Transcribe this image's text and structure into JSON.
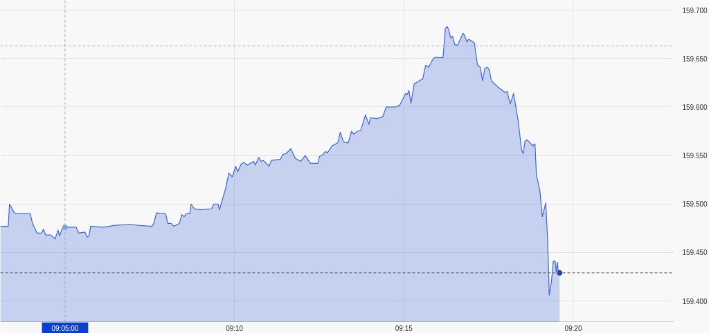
{
  "chart_data": {
    "type": "area",
    "xlim": [
      9.0515,
      9.3829
    ],
    "ylim": [
      159.378,
      159.71
    ],
    "xticks": [
      {
        "value": 9.16667,
        "label": "09:10"
      },
      {
        "value": 9.25,
        "label": "09:15"
      },
      {
        "value": 9.33333,
        "label": "09:20"
      }
    ],
    "yticks": [
      {
        "value": 159.4,
        "label": "159.400"
      },
      {
        "value": 159.45,
        "label": "159.450"
      },
      {
        "value": 159.5,
        "label": "159.500"
      },
      {
        "value": 159.55,
        "label": "159.550"
      },
      {
        "value": 159.6,
        "label": "159.600"
      },
      {
        "value": 159.65,
        "label": "159.650"
      },
      {
        "value": 159.7,
        "label": "159.700"
      }
    ],
    "grid": true,
    "ref_lines": [
      {
        "axis": "x",
        "value": 9.08333,
        "label": "09:05:00",
        "color": "#8cb3d9",
        "line_style": "dashed"
      },
      {
        "axis": "y",
        "value": 159.663,
        "color": "#8cb3d9",
        "line_style": "dashed"
      },
      {
        "axis": "y",
        "value": 159.429,
        "color": "#555555",
        "line_style": "dashed"
      }
    ],
    "series": [
      {
        "color": "#3b66d8",
        "x": [
          9.0515,
          9.0554,
          9.056,
          9.0583,
          9.0594,
          9.0662,
          9.0673,
          9.0695,
          9.0718,
          9.0727,
          9.0738,
          9.0763,
          9.0784,
          9.0799,
          9.0806,
          9.082,
          9.0833,
          9.0888,
          9.0901,
          9.0931,
          9.0942,
          9.0951,
          9.0959,
          9.1023,
          9.108,
          9.1153,
          9.1193,
          9.126,
          9.127,
          9.1283,
          9.1305,
          9.1328,
          9.1339,
          9.1356,
          9.1368,
          9.1396,
          9.1407,
          9.1419,
          9.143,
          9.1447,
          9.1453,
          9.1469,
          9.1498,
          9.1554,
          9.1565,
          9.1586,
          9.1593,
          9.1605,
          9.1622,
          9.1639,
          9.1656,
          9.1673,
          9.1682,
          9.1699,
          9.1714,
          9.1729,
          9.1761,
          9.1769,
          9.1786,
          9.1797,
          9.1808,
          9.1837,
          9.1848,
          9.1893,
          9.1904,
          9.1921,
          9.1944,
          9.1966,
          9.1992,
          9.2015,
          9.204,
          9.2077,
          9.2085,
          9.2102,
          9.2113,
          9.2125,
          9.2147,
          9.2175,
          9.2187,
          9.2203,
          9.2226,
          9.2243,
          9.2254,
          9.2271,
          9.2288,
          9.2311,
          9.2328,
          9.2336,
          9.2368,
          9.2396,
          9.2413,
          9.2458,
          9.248,
          9.2509,
          9.2517,
          9.2525,
          9.2535,
          9.2551,
          9.2576,
          9.2593,
          9.2607,
          9.2622,
          9.2639,
          9.265,
          9.2693,
          9.2704,
          9.2713,
          9.272,
          9.2731,
          9.274,
          9.2751,
          9.2765,
          9.2791,
          9.2799,
          9.281,
          9.2819,
          9.2847,
          9.2862,
          9.2876,
          9.2887,
          9.2898,
          9.291,
          9.2921,
          9.293,
          9.2961,
          9.2997,
          9.3008,
          9.3023,
          9.304,
          9.3062,
          9.3079,
          9.3087,
          9.3096,
          9.3107,
          9.3135,
          9.3145,
          9.3152,
          9.3169,
          9.3181,
          9.3198,
          9.3206,
          9.3212,
          9.3215,
          9.3226,
          9.3235,
          9.3244,
          9.3249,
          9.3255,
          9.326,
          9.3266
        ],
        "values": [
          159.477,
          159.477,
          159.5,
          159.491,
          159.49,
          159.49,
          159.48,
          159.47,
          159.47,
          159.474,
          159.468,
          159.468,
          159.464,
          159.473,
          159.467,
          159.475,
          159.476,
          159.476,
          159.47,
          159.471,
          159.466,
          159.467,
          159.477,
          159.476,
          159.478,
          159.479,
          159.478,
          159.477,
          159.48,
          159.491,
          159.49,
          159.49,
          159.48,
          159.48,
          159.477,
          159.48,
          159.489,
          159.487,
          159.49,
          159.49,
          159.5,
          159.495,
          159.494,
          159.495,
          159.5,
          159.5,
          159.494,
          159.503,
          159.515,
          159.532,
          159.528,
          159.539,
          159.533,
          159.541,
          159.543,
          159.54,
          159.544,
          159.54,
          159.548,
          159.544,
          159.545,
          159.539,
          159.545,
          159.546,
          159.551,
          159.552,
          159.557,
          159.547,
          159.544,
          159.55,
          159.542,
          159.542,
          159.549,
          159.551,
          159.554,
          159.553,
          159.56,
          159.563,
          159.574,
          159.564,
          159.563,
          159.575,
          159.572,
          159.575,
          159.576,
          159.592,
          159.582,
          159.589,
          159.588,
          159.59,
          159.6,
          159.6,
          159.602,
          159.614,
          159.613,
          159.617,
          159.604,
          159.624,
          159.627,
          159.629,
          159.643,
          159.641,
          159.648,
          159.651,
          159.651,
          159.681,
          159.683,
          159.68,
          159.671,
          159.673,
          159.664,
          159.664,
          159.676,
          159.674,
          159.667,
          159.67,
          159.666,
          159.643,
          159.641,
          159.627,
          159.64,
          159.641,
          159.638,
          159.627,
          159.621,
          159.615,
          159.616,
          159.603,
          159.614,
          159.586,
          159.556,
          159.552,
          159.565,
          159.566,
          159.56,
          159.562,
          159.53,
          159.514,
          159.487,
          159.501,
          159.468,
          159.43,
          159.406,
          159.42,
          159.441,
          159.441,
          159.43,
          159.44,
          159.43,
          159.429
        ]
      },
      {
        "type": "scatter",
        "marker": "circle",
        "x": [
          9.08333,
          9.3266
        ],
        "values": [
          159.476,
          159.429
        ],
        "colors": [
          "#7aa3cb",
          "#1a3fc0"
        ]
      }
    ]
  }
}
